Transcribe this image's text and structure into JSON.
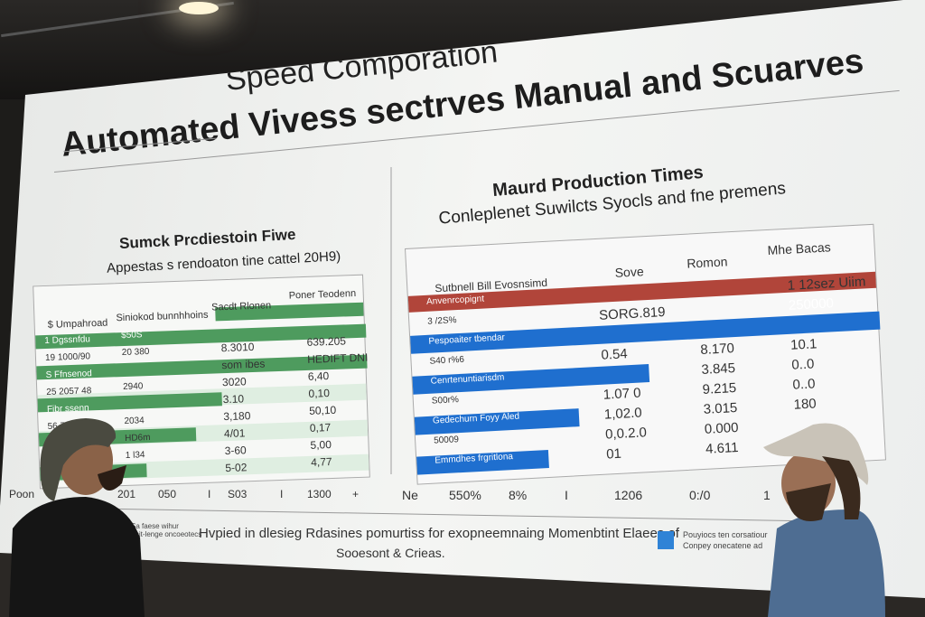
{
  "slide": {
    "title_line1": "Speed Comporation",
    "title_line2": "Automated Vivess sectrves Manual and Scuarves",
    "left_panel": {
      "title": "Sumck Prcdiestoin Fiwe",
      "subtitle": "Appestas s rendoaton tine cattel 20H9)",
      "headers": [
        "$ Umpahroad",
        "Siniokod bunnhhoins",
        "Sacdt Rlonen",
        "Poner Teodenn"
      ],
      "rows": [
        [
          "1 Dgssnfdu",
          "$50S",
          "",
          ""
        ],
        [
          "19 1000/90",
          "20 380",
          "8.3010",
          "639.205"
        ],
        [
          "S Ffnsenod",
          "",
          "som ibes",
          "HEDIFT DNI"
        ],
        [
          "25 2057 48",
          "2940",
          "3020",
          "6,40"
        ],
        [
          "Fibr ssenn",
          "",
          "3.10",
          "0,10"
        ],
        [
          "56 77 nosm",
          "2034",
          "3,180",
          "50,10"
        ],
        [
          "",
          "HD6m",
          "4/01",
          "0,17"
        ],
        [
          "",
          "1 l34",
          "3-60",
          "5,00"
        ],
        [
          "",
          "",
          "5-02",
          "4,77"
        ]
      ],
      "axis": [
        "Poon",
        "201",
        "050",
        "I",
        "S03",
        "I",
        "1300",
        "+"
      ]
    },
    "right_panel": {
      "title": "Maurd Production Times",
      "subtitle": "Conleplenet Suwilcts Syocls and fne premens",
      "headers": [
        "Sutbnell Bill Evosnsimd",
        "Sove",
        "Romon",
        "Mhe Bacas"
      ],
      "rows": [
        [
          "Anvenrcopignt",
          "",
          "",
          "1 12sez Uiim"
        ],
        [
          "3 /2S%",
          "SORG.819",
          "",
          "250000"
        ],
        [
          "Pespoaiter tbendar",
          "",
          "",
          ""
        ],
        [
          "S40 r%6",
          "0.54",
          "8.170",
          "10.1"
        ],
        [
          "Cenrtenuntiarisdm",
          "",
          "3.845",
          "0..0"
        ],
        [
          "S00r%",
          "1.07 0",
          "9.215",
          "0..0"
        ],
        [
          "Gedechurn Foyy Aled",
          "1,02.0",
          "3.015",
          "180"
        ],
        [
          "50009",
          "0,0.2.0",
          "0.000",
          ""
        ],
        [
          "Emmdhes frgritlona",
          "01",
          "4.611",
          ""
        ]
      ],
      "axis": [
        "Ne",
        "550%",
        "8%",
        "I",
        "1206",
        "0:/0",
        "1"
      ]
    },
    "footer": {
      "caption": [
        "Sa faese wihur",
        "enit-lenge oncoeotecs"
      ],
      "text_line1": "Hvpied in dlesieg Rdasines pomurtiss for exopneemnaing Momenbtint Elaees of",
      "text_line2": "Sooesont & Crieas.",
      "legend": [
        "Pouyiocs ten corsatiour",
        "Conpey onecatene ad"
      ]
    }
  },
  "colors": {
    "green": "#4e9b5e",
    "red": "#b1453a",
    "blue": "#1f6fcf"
  }
}
